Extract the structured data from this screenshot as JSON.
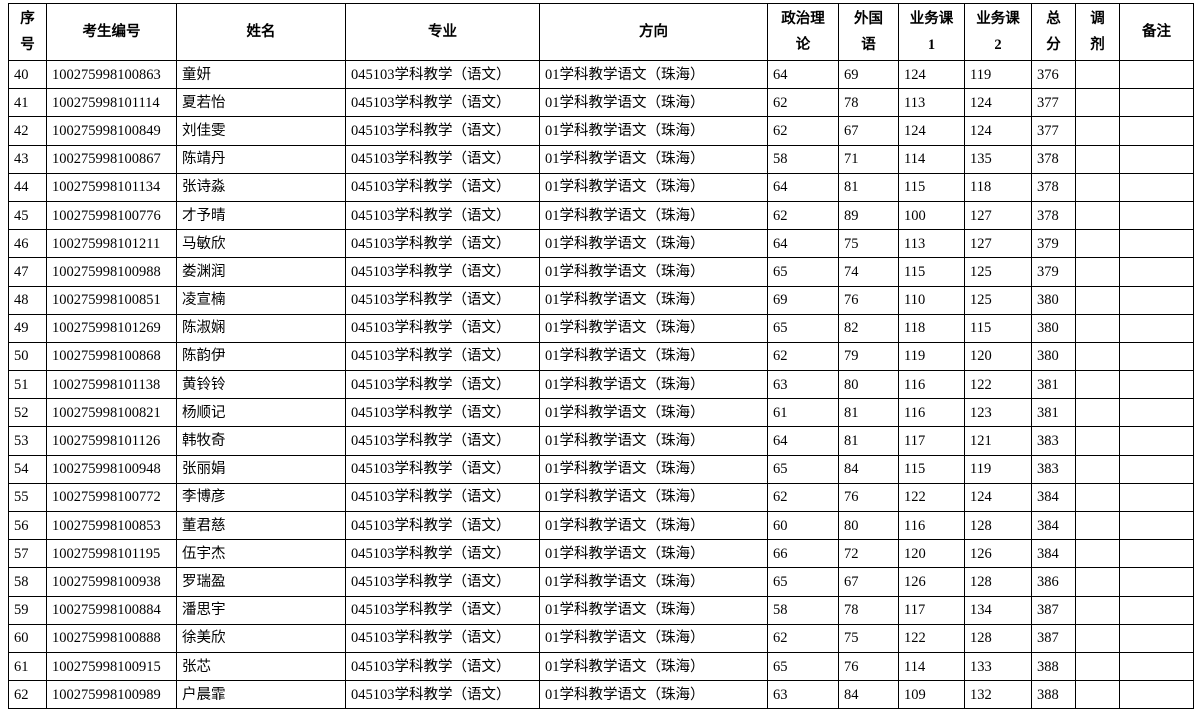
{
  "headers": [
    [
      "序",
      "号"
    ],
    [
      "考生编号"
    ],
    [
      "姓名"
    ],
    [
      "专业"
    ],
    [
      "方向"
    ],
    [
      "政治理",
      "论"
    ],
    [
      "外国",
      "语"
    ],
    [
      "业务课",
      "1"
    ],
    [
      "业务课",
      "2"
    ],
    [
      "总",
      "分"
    ],
    [
      "调",
      "剂"
    ],
    [
      "备注"
    ]
  ],
  "rows": [
    [
      "40",
      "100275998100863",
      "童妍",
      "045103学科教学（语文）",
      "01学科教学语文（珠海）",
      "64",
      "69",
      "124",
      "119",
      "376",
      "",
      ""
    ],
    [
      "41",
      "100275998101114",
      "夏若怡",
      "045103学科教学（语文）",
      "01学科教学语文（珠海）",
      "62",
      "78",
      "113",
      "124",
      "377",
      "",
      ""
    ],
    [
      "42",
      "100275998100849",
      "刘佳雯",
      "045103学科教学（语文）",
      "01学科教学语文（珠海）",
      "62",
      "67",
      "124",
      "124",
      "377",
      "",
      ""
    ],
    [
      "43",
      "100275998100867",
      "陈靖丹",
      "045103学科教学（语文）",
      "01学科教学语文（珠海）",
      "58",
      "71",
      "114",
      "135",
      "378",
      "",
      ""
    ],
    [
      "44",
      "100275998101134",
      "张诗淼",
      "045103学科教学（语文）",
      "01学科教学语文（珠海）",
      "64",
      "81",
      "115",
      "118",
      "378",
      "",
      ""
    ],
    [
      "45",
      "100275998100776",
      "才予晴",
      "045103学科教学（语文）",
      "01学科教学语文（珠海）",
      "62",
      "89",
      "100",
      "127",
      "378",
      "",
      ""
    ],
    [
      "46",
      "100275998101211",
      "马敏欣",
      "045103学科教学（语文）",
      "01学科教学语文（珠海）",
      "64",
      "75",
      "113",
      "127",
      "379",
      "",
      ""
    ],
    [
      "47",
      "100275998100988",
      "娄渊润",
      "045103学科教学（语文）",
      "01学科教学语文（珠海）",
      "65",
      "74",
      "115",
      "125",
      "379",
      "",
      ""
    ],
    [
      "48",
      "100275998100851",
      "凌宣楠",
      "045103学科教学（语文）",
      "01学科教学语文（珠海）",
      "69",
      "76",
      "110",
      "125",
      "380",
      "",
      ""
    ],
    [
      "49",
      "100275998101269",
      "陈淑娴",
      "045103学科教学（语文）",
      "01学科教学语文（珠海）",
      "65",
      "82",
      "118",
      "115",
      "380",
      "",
      ""
    ],
    [
      "50",
      "100275998100868",
      "陈韵伊",
      "045103学科教学（语文）",
      "01学科教学语文（珠海）",
      "62",
      "79",
      "119",
      "120",
      "380",
      "",
      ""
    ],
    [
      "51",
      "100275998101138",
      "黄铃铃",
      "045103学科教学（语文）",
      "01学科教学语文（珠海）",
      "63",
      "80",
      "116",
      "122",
      "381",
      "",
      ""
    ],
    [
      "52",
      "100275998100821",
      "杨顺记",
      "045103学科教学（语文）",
      "01学科教学语文（珠海）",
      "61",
      "81",
      "116",
      "123",
      "381",
      "",
      ""
    ],
    [
      "53",
      "100275998101126",
      "韩牧奇",
      "045103学科教学（语文）",
      "01学科教学语文（珠海）",
      "64",
      "81",
      "117",
      "121",
      "383",
      "",
      ""
    ],
    [
      "54",
      "100275998100948",
      "张丽娟",
      "045103学科教学（语文）",
      "01学科教学语文（珠海）",
      "65",
      "84",
      "115",
      "119",
      "383",
      "",
      ""
    ],
    [
      "55",
      "100275998100772",
      "李博彦",
      "045103学科教学（语文）",
      "01学科教学语文（珠海）",
      "62",
      "76",
      "122",
      "124",
      "384",
      "",
      ""
    ],
    [
      "56",
      "100275998100853",
      "董君慈",
      "045103学科教学（语文）",
      "01学科教学语文（珠海）",
      "60",
      "80",
      "116",
      "128",
      "384",
      "",
      ""
    ],
    [
      "57",
      "100275998101195",
      "伍宇杰",
      "045103学科教学（语文）",
      "01学科教学语文（珠海）",
      "66",
      "72",
      "120",
      "126",
      "384",
      "",
      ""
    ],
    [
      "58",
      "100275998100938",
      "罗瑞盈",
      "045103学科教学（语文）",
      "01学科教学语文（珠海）",
      "65",
      "67",
      "126",
      "128",
      "386",
      "",
      ""
    ],
    [
      "59",
      "100275998100884",
      "潘思宇",
      "045103学科教学（语文）",
      "01学科教学语文（珠海）",
      "58",
      "78",
      "117",
      "134",
      "387",
      "",
      ""
    ],
    [
      "60",
      "100275998100888",
      "徐美欣",
      "045103学科教学（语文）",
      "01学科教学语文（珠海）",
      "62",
      "75",
      "122",
      "128",
      "387",
      "",
      ""
    ],
    [
      "61",
      "100275998100915",
      "张芯",
      "045103学科教学（语文）",
      "01学科教学语文（珠海）",
      "65",
      "76",
      "114",
      "133",
      "388",
      "",
      ""
    ],
    [
      "62",
      "100275998100989",
      "户晨霏",
      "045103学科教学（语文）",
      "01学科教学语文（珠海）",
      "63",
      "84",
      "109",
      "132",
      "388",
      "",
      ""
    ]
  ]
}
